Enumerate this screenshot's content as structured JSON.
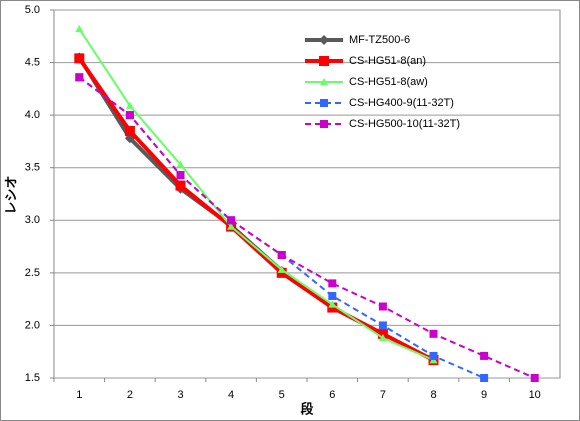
{
  "chart_data": {
    "type": "line",
    "x_label": "段",
    "y_label": "レシオ",
    "categories": [
      "1",
      "2",
      "3",
      "4",
      "5",
      "6",
      "7",
      "8",
      "9",
      "10"
    ],
    "ylim": [
      1.5,
      5.0
    ],
    "yticks": [
      {
        "value": 1.5,
        "label": "1.5"
      },
      {
        "value": 2.0,
        "label": "2.0"
      },
      {
        "value": 2.5,
        "label": "2.5"
      },
      {
        "value": 3.0,
        "label": "3.0"
      },
      {
        "value": 3.5,
        "label": "3.5"
      },
      {
        "value": 4.0,
        "label": "4.0"
      },
      {
        "value": 4.5,
        "label": "4.5"
      },
      {
        "value": 5.0,
        "label": "5.0"
      }
    ],
    "grid": true,
    "legend": "top-right",
    "series": [
      {
        "name": "MF-TZ500-6",
        "color": "#595959",
        "marker": "diamond",
        "dashed": false,
        "width": 4,
        "values": [
          4.55,
          3.78,
          3.3,
          2.95,
          2.52,
          2.18,
          null,
          null,
          null,
          null
        ]
      },
      {
        "name": "CS-HG51-8(an)",
        "color": "#ff0000",
        "marker": "square",
        "dashed": false,
        "width": 4,
        "values": [
          4.54,
          3.85,
          3.33,
          2.94,
          2.5,
          2.17,
          1.92,
          1.67,
          null,
          null
        ]
      },
      {
        "name": "CS-HG51-8(aw)",
        "color": "#66ff66",
        "marker": "triangle",
        "dashed": false,
        "width": 2,
        "values": [
          4.82,
          4.09,
          3.53,
          2.94,
          2.53,
          2.2,
          1.88,
          1.67,
          null,
          null
        ]
      },
      {
        "name": "CS-HG400-9(11-32T)",
        "color": "#3366ff",
        "marker": "square",
        "dashed": true,
        "width": 2,
        "values": [
          4.36,
          4.0,
          3.43,
          3.0,
          2.67,
          2.28,
          2.0,
          1.71,
          1.5,
          null
        ]
      },
      {
        "name": "CS-HG500-10(11-32T)",
        "color": "#cc00cc",
        "marker": "square",
        "dashed": true,
        "width": 2,
        "values": [
          4.36,
          4.0,
          3.43,
          3.0,
          2.67,
          2.4,
          2.18,
          1.92,
          1.71,
          1.5
        ]
      }
    ]
  }
}
